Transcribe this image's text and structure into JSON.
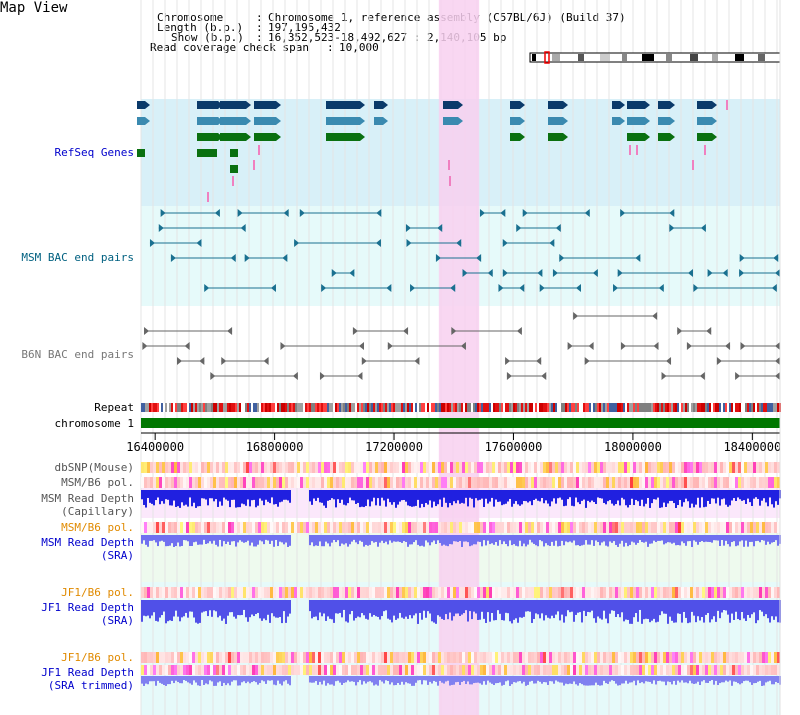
{
  "title": "Map View",
  "info": {
    "chromosome_label": "Chromosome",
    "chromosome_value": "Chromosome 1, reference assembly (C57BL/6J) (Build 37)",
    "length_label": "Length (b.p.)",
    "length_value": "197,195,432",
    "show_label": "Show (b.p.)",
    "show_value": "16,352,523-18,492,627 : 2,140,105 bp",
    "coverage_label": "Read coverage check span",
    "coverage_value": "10,000"
  },
  "tracks": {
    "refseq": "RefSeq Genes",
    "msm_bac": "MSM BAC end pairs",
    "b6n_bac": "B6N BAC end pairs",
    "repeat": "Repeat",
    "chromosome": "chromosome 1",
    "dbsnp": "dbSNP(Mouse)",
    "msm_b6_pol_1": "MSM/B6 pol.",
    "msm_depth_cap_1": "MSM Read Depth",
    "msm_depth_cap_2": "(Capillary)",
    "msm_b6_pol_2": "MSM/B6 pol.",
    "msm_depth_sra_1": "MSM Read Depth",
    "msm_depth_sra_2": "(SRA)",
    "jf1_b6_pol_1": "JF1/B6 pol.",
    "jf1_depth_sra_1": "JF1 Read Depth",
    "jf1_depth_sra_2": "(SRA)",
    "jf1_b6_pol_2": "JF1/B6 pol.",
    "jf1_depth_trim_1": "JF1 Read Depth",
    "jf1_depth_trim_2": "(SRA trimmed)"
  },
  "axis": {
    "ticks": [
      "16400000",
      "16800000",
      "17200000",
      "17600000",
      "18000000",
      "18400000"
    ],
    "tick_values": [
      16400000,
      16800000,
      17200000,
      17600000,
      18000000,
      18400000
    ],
    "range": [
      16352523,
      18492627
    ]
  },
  "highlight": {
    "start": 17350000,
    "end": 17485000
  },
  "colors": {
    "refseq_bg": "#d8f0f8",
    "highlight": "#f8d0f0",
    "gene_dark": "#0a3a6a",
    "gene_mid": "#3a8ab0",
    "gene_green": "#0a7010",
    "msm_bac": "#1a7090",
    "b6n_bac": "#666666",
    "chrom_bar": "#007700",
    "depth_blue": "#2020e0"
  }
}
